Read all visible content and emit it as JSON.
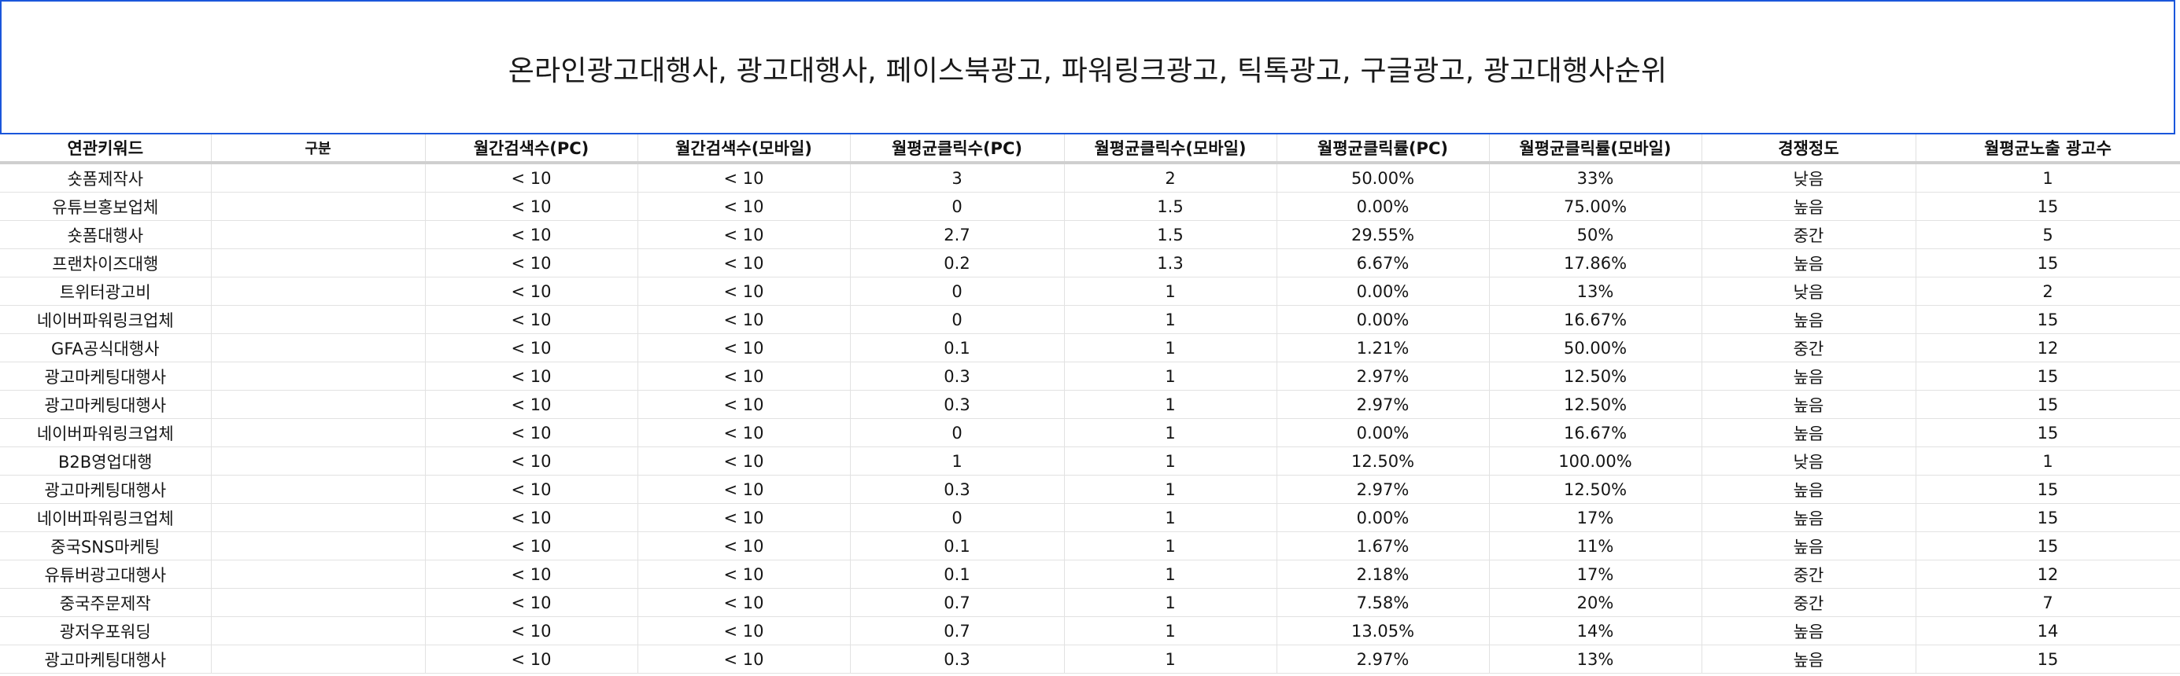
{
  "title": "온라인광고대행사, 광고대행사, 페이스북광고, 파워링크광고, 틱톡광고, 구글광고, 광고대행사순위",
  "columns": [
    "연관키워드",
    "구분",
    "월간검색수(PC)",
    "월간검색수(모바일)",
    "월평균클릭수(PC)",
    "월평균클릭수(모바일)",
    "월평균클릭률(PC)",
    "월평균클릭률(모바일)",
    "경쟁정도",
    "월평균노출 광고수"
  ],
  "rows": [
    [
      "숏폼제작사",
      "",
      "< 10",
      "< 10",
      "3",
      "2",
      "50.00%",
      "33%",
      "낮음",
      "1"
    ],
    [
      "유튜브홍보업체",
      "",
      "< 10",
      "< 10",
      "0",
      "1.5",
      "0.00%",
      "75.00%",
      "높음",
      "15"
    ],
    [
      "숏폼대행사",
      "",
      "< 10",
      "< 10",
      "2.7",
      "1.5",
      "29.55%",
      "50%",
      "중간",
      "5"
    ],
    [
      "프랜차이즈대행",
      "",
      "< 10",
      "< 10",
      "0.2",
      "1.3",
      "6.67%",
      "17.86%",
      "높음",
      "15"
    ],
    [
      "트위터광고비",
      "",
      "< 10",
      "< 10",
      "0",
      "1",
      "0.00%",
      "13%",
      "낮음",
      "2"
    ],
    [
      "네이버파워링크업체",
      "",
      "< 10",
      "< 10",
      "0",
      "1",
      "0.00%",
      "16.67%",
      "높음",
      "15"
    ],
    [
      "GFA공식대행사",
      "",
      "< 10",
      "< 10",
      "0.1",
      "1",
      "1.21%",
      "50.00%",
      "중간",
      "12"
    ],
    [
      "광고마케팅대행사",
      "",
      "< 10",
      "< 10",
      "0.3",
      "1",
      "2.97%",
      "12.50%",
      "높음",
      "15"
    ],
    [
      "광고마케팅대행사",
      "",
      "< 10",
      "< 10",
      "0.3",
      "1",
      "2.97%",
      "12.50%",
      "높음",
      "15"
    ],
    [
      "네이버파워링크업체",
      "",
      "< 10",
      "< 10",
      "0",
      "1",
      "0.00%",
      "16.67%",
      "높음",
      "15"
    ],
    [
      "B2B영업대행",
      "",
      "< 10",
      "< 10",
      "1",
      "1",
      "12.50%",
      "100.00%",
      "낮음",
      "1"
    ],
    [
      "광고마케팅대행사",
      "",
      "< 10",
      "< 10",
      "0.3",
      "1",
      "2.97%",
      "12.50%",
      "높음",
      "15"
    ],
    [
      "네이버파워링크업체",
      "",
      "< 10",
      "< 10",
      "0",
      "1",
      "0.00%",
      "17%",
      "높음",
      "15"
    ],
    [
      "중국SNS마케팅",
      "",
      "< 10",
      "< 10",
      "0.1",
      "1",
      "1.67%",
      "11%",
      "높음",
      "15"
    ],
    [
      "유튜버광고대행사",
      "",
      "< 10",
      "< 10",
      "0.1",
      "1",
      "2.18%",
      "17%",
      "중간",
      "12"
    ],
    [
      "중국주문제작",
      "",
      "< 10",
      "< 10",
      "0.7",
      "1",
      "7.58%",
      "20%",
      "중간",
      "7"
    ],
    [
      "광저우포워딩",
      "",
      "< 10",
      "< 10",
      "0.7",
      "1",
      "13.05%",
      "14%",
      "높음",
      "14"
    ],
    [
      "광고마케팅대행사",
      "",
      "< 10",
      "< 10",
      "0.3",
      "1",
      "2.97%",
      "13%",
      "높음",
      "15"
    ]
  ]
}
